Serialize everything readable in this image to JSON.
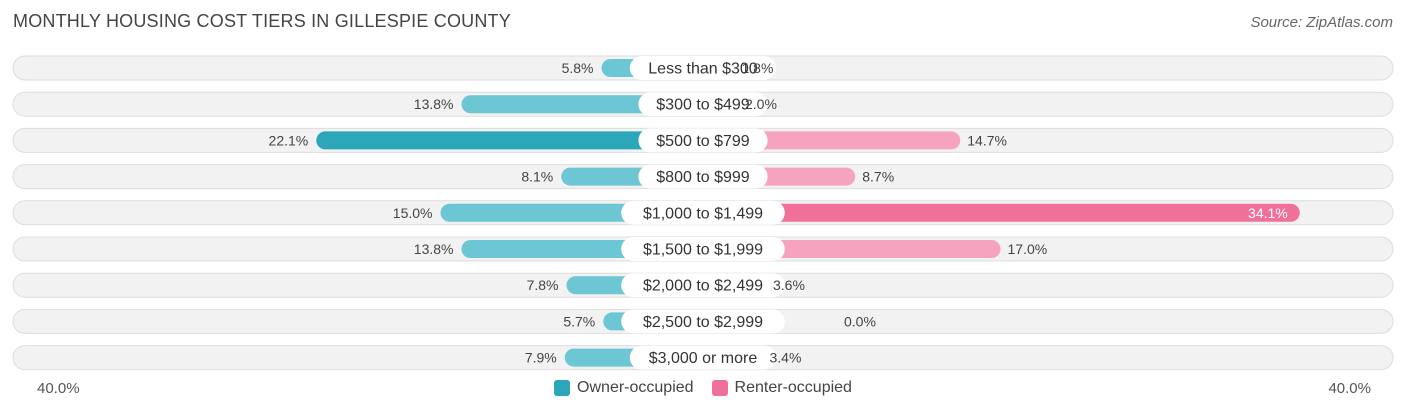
{
  "header": {
    "title": "MONTHLY HOUSING COST TIERS IN GILLESPIE COUNTY",
    "source": "Source: ZipAtlas.com"
  },
  "axis": {
    "left_label": "40.0%",
    "right_label": "40.0%"
  },
  "legend": {
    "owner_label": "Owner-occupied",
    "renter_label": "Renter-occupied"
  },
  "colors": {
    "owner": "#6cc6d3",
    "owner_highlight": "#2ba7b9",
    "renter": "#f6a3bf",
    "renter_highlight": "#f0709a",
    "row_bg": "#efefef",
    "row_border": "#dddddd"
  },
  "chart_data": {
    "type": "bar",
    "orientation": "horizontal-diverging",
    "title": "MONTHLY HOUSING COST TIERS IN GILLESPIE COUNTY",
    "categories": [
      "Less than $300",
      "$300 to $499",
      "$500 to $799",
      "$800 to $999",
      "$1,000 to $1,499",
      "$1,500 to $1,999",
      "$2,000 to $2,499",
      "$2,500 to $2,999",
      "$3,000 or more"
    ],
    "series": [
      {
        "name": "Owner-occupied",
        "values": [
          5.8,
          13.8,
          22.1,
          8.1,
          15.0,
          13.8,
          7.8,
          5.7,
          7.9
        ],
        "labels": [
          "5.8%",
          "13.8%",
          "22.1%",
          "8.1%",
          "15.0%",
          "13.8%",
          "7.8%",
          "5.7%",
          "7.9%"
        ]
      },
      {
        "name": "Renter-occupied",
        "values": [
          1.8,
          2.0,
          14.7,
          8.7,
          34.1,
          17.0,
          3.6,
          0.0,
          3.4
        ],
        "labels": [
          "1.8%",
          "2.0%",
          "14.7%",
          "8.7%",
          "34.1%",
          "17.0%",
          "3.6%",
          "0.0%",
          "3.4%"
        ]
      }
    ],
    "xlim": [
      -40,
      40
    ],
    "xlabel_left": "40.0%",
    "xlabel_right": "40.0%"
  }
}
